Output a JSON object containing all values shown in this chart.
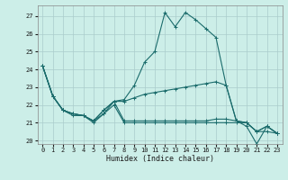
{
  "xlabel": "Humidex (Indice chaleur)",
  "background_color": "#cceee8",
  "grid_color": "#aacccc",
  "line_color": "#1a6b6b",
  "xlim": [
    -0.5,
    23.5
  ],
  "ylim": [
    19.8,
    27.6
  ],
  "yticks": [
    20,
    21,
    22,
    23,
    24,
    25,
    26,
    27
  ],
  "xticks": [
    0,
    1,
    2,
    3,
    4,
    5,
    6,
    7,
    8,
    9,
    10,
    11,
    12,
    13,
    14,
    15,
    16,
    17,
    18,
    19,
    20,
    21,
    22,
    23
  ],
  "series": [
    [
      24.2,
      22.5,
      21.7,
      21.4,
      21.4,
      21.0,
      21.5,
      22.2,
      22.3,
      23.1,
      24.4,
      25.0,
      27.2,
      26.4,
      27.2,
      26.8,
      26.3,
      25.8,
      23.1,
      21.1,
      20.8,
      19.8,
      20.8,
      20.4
    ],
    [
      24.2,
      22.5,
      21.7,
      21.5,
      21.4,
      21.1,
      21.7,
      22.2,
      22.2,
      22.4,
      22.6,
      22.7,
      22.8,
      22.9,
      23.0,
      23.1,
      23.2,
      23.3,
      23.1,
      21.1,
      21.0,
      20.5,
      20.8,
      20.4
    ],
    [
      24.2,
      22.5,
      21.7,
      21.5,
      21.4,
      21.1,
      21.7,
      22.2,
      21.1,
      21.1,
      21.1,
      21.1,
      21.1,
      21.1,
      21.1,
      21.1,
      21.1,
      21.2,
      21.2,
      21.1,
      21.0,
      20.5,
      20.8,
      20.4
    ],
    [
      24.2,
      22.5,
      21.7,
      21.5,
      21.4,
      21.1,
      21.5,
      22.0,
      21.0,
      21.0,
      21.0,
      21.0,
      21.0,
      21.0,
      21.0,
      21.0,
      21.0,
      21.0,
      21.0,
      21.0,
      21.0,
      20.5,
      20.5,
      20.4
    ]
  ]
}
